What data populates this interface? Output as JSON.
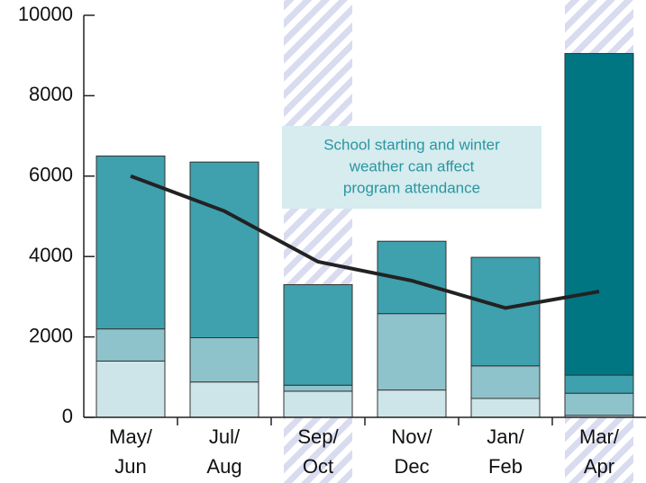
{
  "chart_data": {
    "type": "bar",
    "stacked": true,
    "categories": [
      [
        "May/",
        "Jun"
      ],
      [
        "Jul/",
        "Aug"
      ],
      [
        "Sep/",
        "Oct"
      ],
      [
        "Nov/",
        "Dec"
      ],
      [
        "Jan/",
        "Feb"
      ],
      [
        "Mar/",
        "Apr"
      ]
    ],
    "series": [
      {
        "color": "#cde5e8",
        "values": [
          1400,
          880,
          650,
          680,
          470,
          50
        ]
      },
      {
        "color": "#8fc3cb",
        "values": [
          800,
          1100,
          150,
          1900,
          810,
          550
        ]
      },
      {
        "color": "#3fa0ae",
        "values": [
          4300,
          4370,
          2500,
          1800,
          2700,
          450
        ]
      },
      {
        "color": "#007683",
        "values": [
          0,
          0,
          0,
          0,
          0,
          8000
        ]
      }
    ],
    "line": {
      "type": "line",
      "color": "#222222",
      "values": [
        6000,
        5130,
        3870,
        3400,
        2720,
        3130
      ]
    },
    "highlight": [
      2,
      5
    ],
    "annotation": [
      "School starting and winter",
      "weather can affect",
      "program attendance"
    ],
    "ylim": [
      0,
      10000
    ],
    "yticks": [
      0,
      2000,
      4000,
      6000,
      8000,
      10000
    ]
  }
}
